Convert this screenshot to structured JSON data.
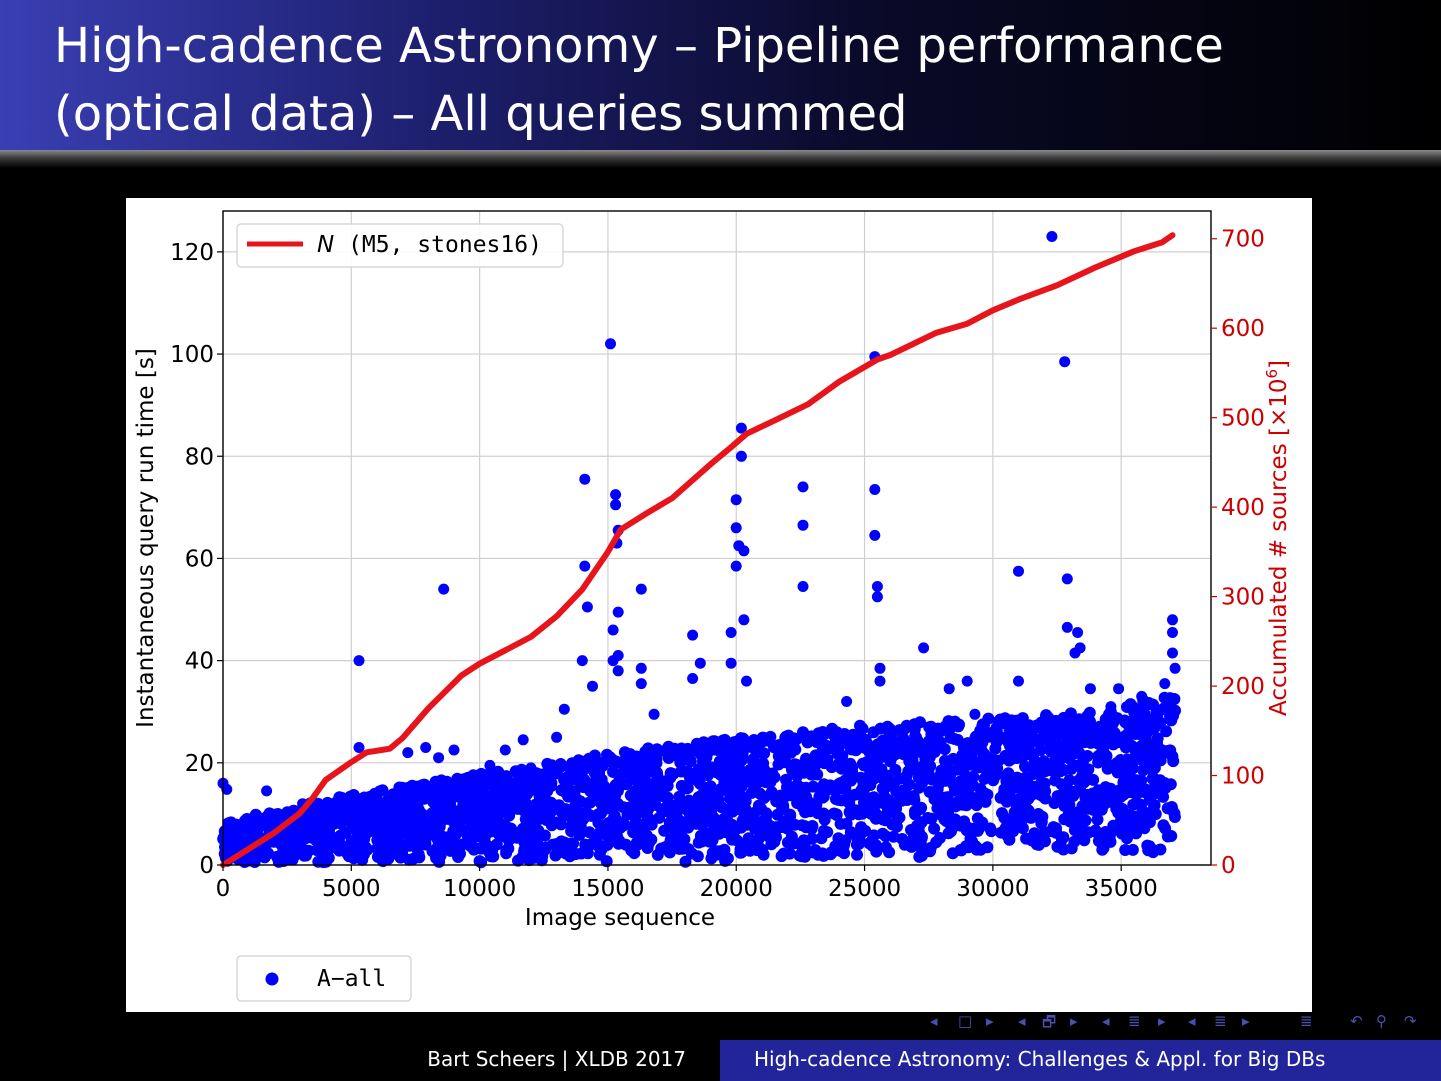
{
  "slide": {
    "title_line1": "High-cadence Astronomy – Pipeline performance",
    "title_line2": "(optical data) – All queries summed"
  },
  "footer": {
    "left": "Bart Scheers | XLDB 2017",
    "right": "High-cadence Astronomy: Challenges & Appl. for Big DBs"
  },
  "nav_icons": [
    "nav-prev-frame-icon",
    "nav-frame-icon",
    "nav-next-frame-icon",
    "nav-prev-subsection-icon",
    "nav-subsection-icon",
    "nav-next-subsection-icon",
    "nav-prev-section-icon",
    "nav-section-icon",
    "nav-next-section-icon",
    "nav-prev-doc-icon",
    "nav-doc-icon",
    "nav-next-doc-icon",
    "nav-align-icon",
    "nav-back-icon",
    "nav-search-icon",
    "nav-forward-icon"
  ],
  "colors": {
    "series_query": "#0000ff",
    "series_sources": "#e8141c",
    "right_axis": "#cc0000",
    "footer_bar": "#22259a"
  },
  "chart_data": {
    "type": "scatter",
    "xlabel": "Image sequence",
    "ylabel": "Instantaneous query run time [s]",
    "y2label_prefix": "Accumulated # sources [×10",
    "y2label_exp": "6",
    "y2label_suffix": "]",
    "xlim": [
      0,
      38500
    ],
    "ylim": [
      0,
      128
    ],
    "y2lim": [
      0,
      731
    ],
    "xticks": [
      0,
      5000,
      10000,
      15000,
      20000,
      25000,
      30000,
      35000
    ],
    "yticks": [
      0,
      20,
      40,
      60,
      80,
      100,
      120
    ],
    "y2ticks": [
      0,
      100,
      200,
      300,
      400,
      500,
      600,
      700
    ],
    "grid": true,
    "legend_top": {
      "placement": "top-left",
      "label_italic": "N",
      "label_rest": " (M5, stones16)"
    },
    "legend_bottom": {
      "placement": "below-left",
      "label": "A−all"
    },
    "series": [
      {
        "name": "A−all",
        "kind": "scatter",
        "axis": "left",
        "outliers": [
          [
            0,
            16
          ],
          [
            150,
            14.8
          ],
          [
            1700,
            14.5
          ],
          [
            5300,
            40
          ],
          [
            5300,
            23
          ],
          [
            7200,
            22
          ],
          [
            7900,
            23
          ],
          [
            8400,
            21
          ],
          [
            8600,
            54
          ],
          [
            9000,
            22.5
          ],
          [
            10400,
            19.5
          ],
          [
            11000,
            22.5
          ],
          [
            11700,
            24.5
          ],
          [
            12000,
            19
          ],
          [
            13000,
            25
          ],
          [
            13300,
            30.5
          ],
          [
            14000,
            40
          ],
          [
            14100,
            75.5
          ],
          [
            14100,
            58.5
          ],
          [
            14200,
            50.5
          ],
          [
            14400,
            35
          ],
          [
            15100,
            102
          ],
          [
            15200,
            46
          ],
          [
            15300,
            72.5
          ],
          [
            15300,
            70.5
          ],
          [
            15400,
            65.5
          ],
          [
            15350,
            63
          ],
          [
            15400,
            49.5
          ],
          [
            15400,
            41
          ],
          [
            15400,
            38
          ],
          [
            15200,
            40
          ],
          [
            16300,
            54
          ],
          [
            16300,
            38.5
          ],
          [
            16300,
            35.5
          ],
          [
            16800,
            29.5
          ],
          [
            18300,
            45
          ],
          [
            18300,
            36.5
          ],
          [
            18600,
            39.5
          ],
          [
            19800,
            39.5
          ],
          [
            19800,
            45.5
          ],
          [
            20000,
            71.5
          ],
          [
            20000,
            66
          ],
          [
            20100,
            62.5
          ],
          [
            20300,
            61.5
          ],
          [
            20000,
            58.5
          ],
          [
            20200,
            85.5
          ],
          [
            20200,
            80
          ],
          [
            20300,
            48
          ],
          [
            20400,
            36
          ],
          [
            22600,
            74
          ],
          [
            22600,
            66.5
          ],
          [
            22600,
            54.5
          ],
          [
            24300,
            32
          ],
          [
            25400,
            99.5
          ],
          [
            25400,
            73.5
          ],
          [
            25400,
            64.5
          ],
          [
            25500,
            54.5
          ],
          [
            25500,
            52.5
          ],
          [
            25600,
            38.5
          ],
          [
            25600,
            36
          ],
          [
            27300,
            42.5
          ],
          [
            28300,
            34.5
          ],
          [
            29000,
            36
          ],
          [
            29300,
            29.5
          ],
          [
            30300,
            28
          ],
          [
            31000,
            57.5
          ],
          [
            31000,
            36
          ],
          [
            32300,
            123
          ],
          [
            32800,
            98.5
          ],
          [
            32900,
            56
          ],
          [
            32900,
            46.5
          ],
          [
            33300,
            45.5
          ],
          [
            33400,
            42.5
          ],
          [
            33200,
            41.5
          ],
          [
            33800,
            34.5
          ],
          [
            34600,
            31
          ],
          [
            34900,
            34.5
          ],
          [
            35800,
            33
          ],
          [
            36700,
            35.5
          ],
          [
            37000,
            48
          ],
          [
            37000,
            45.5
          ],
          [
            37000,
            41.5
          ],
          [
            37100,
            38.5
          ],
          [
            34200,
            26.5
          ],
          [
            3100,
            12
          ]
        ]
      },
      {
        "name": "N (M5, stones16)",
        "kind": "line",
        "axis": "right",
        "x": [
          0,
          1000,
          2000,
          3000,
          3500,
          4000,
          5000,
          5600,
          6500,
          7000,
          8000,
          8700,
          9300,
          10000,
          11000,
          12000,
          13000,
          14000,
          15000,
          15500,
          16500,
          17500,
          19000,
          19800,
          20400,
          21500,
          22800,
          24000,
          25500,
          26000,
          27800,
          29000,
          30000,
          31000,
          32500,
          34000,
          35500,
          36600,
          37000
        ],
        "y": [
          0,
          18,
          36,
          58,
          75,
          95,
          115,
          126,
          130,
          142,
          175,
          195,
          212,
          225,
          240,
          255,
          278,
          308,
          350,
          375,
          393,
          410,
          448,
          467,
          482,
          497,
          515,
          540,
          565,
          570,
          595,
          605,
          620,
          632,
          648,
          668,
          686,
          696,
          704
        ]
      }
    ]
  }
}
